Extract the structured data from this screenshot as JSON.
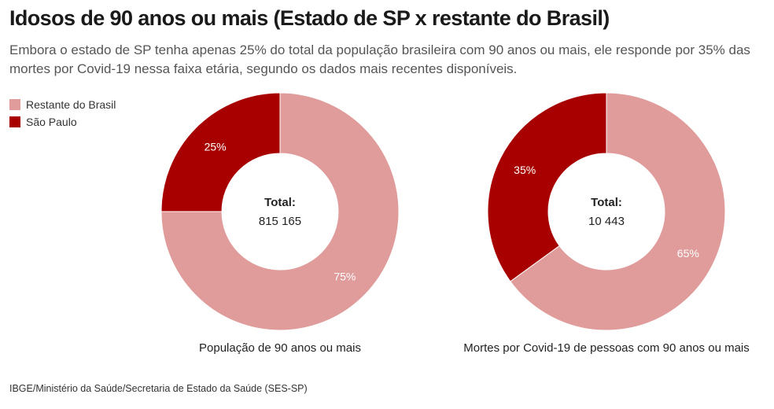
{
  "title": "Idosos de 90 anos ou mais (Estado de SP x restante do Brasil)",
  "subtitle": "Embora o estado de SP tenha apenas 25% do total da população brasileira com 90 anos ou mais, ele responde por 35% das mortes por Covid-19 nessa faixa etária, segundo os dados mais recentes disponíveis.",
  "legend": [
    {
      "label": "Restante do Brasil",
      "color": "#e09b9b"
    },
    {
      "label": "São Paulo",
      "color": "#a80000"
    }
  ],
  "source": "IBGE/Ministério da Saúde/Secretaria de Estado da Saúde (SES-SP)",
  "chart_data": [
    {
      "type": "pie",
      "subtype": "donut",
      "title": "População de 90 anos ou mais",
      "center_label": "Total:",
      "center_value": "815 165",
      "slices": [
        {
          "name": "São Paulo",
          "value": 25,
          "label": "25%",
          "color": "#a80000"
        },
        {
          "name": "Restante do Brasil",
          "value": 75,
          "label": "75%",
          "color": "#e09b9b"
        }
      ]
    },
    {
      "type": "pie",
      "subtype": "donut",
      "title": "Mortes por Covid-19 de pessoas com 90 anos ou mais",
      "center_label": "Total:",
      "center_value": "10 443",
      "slices": [
        {
          "name": "São Paulo",
          "value": 35,
          "label": "35%",
          "color": "#a80000"
        },
        {
          "name": "Restante do Brasil",
          "value": 65,
          "label": "65%",
          "color": "#e09b9b"
        }
      ]
    }
  ]
}
